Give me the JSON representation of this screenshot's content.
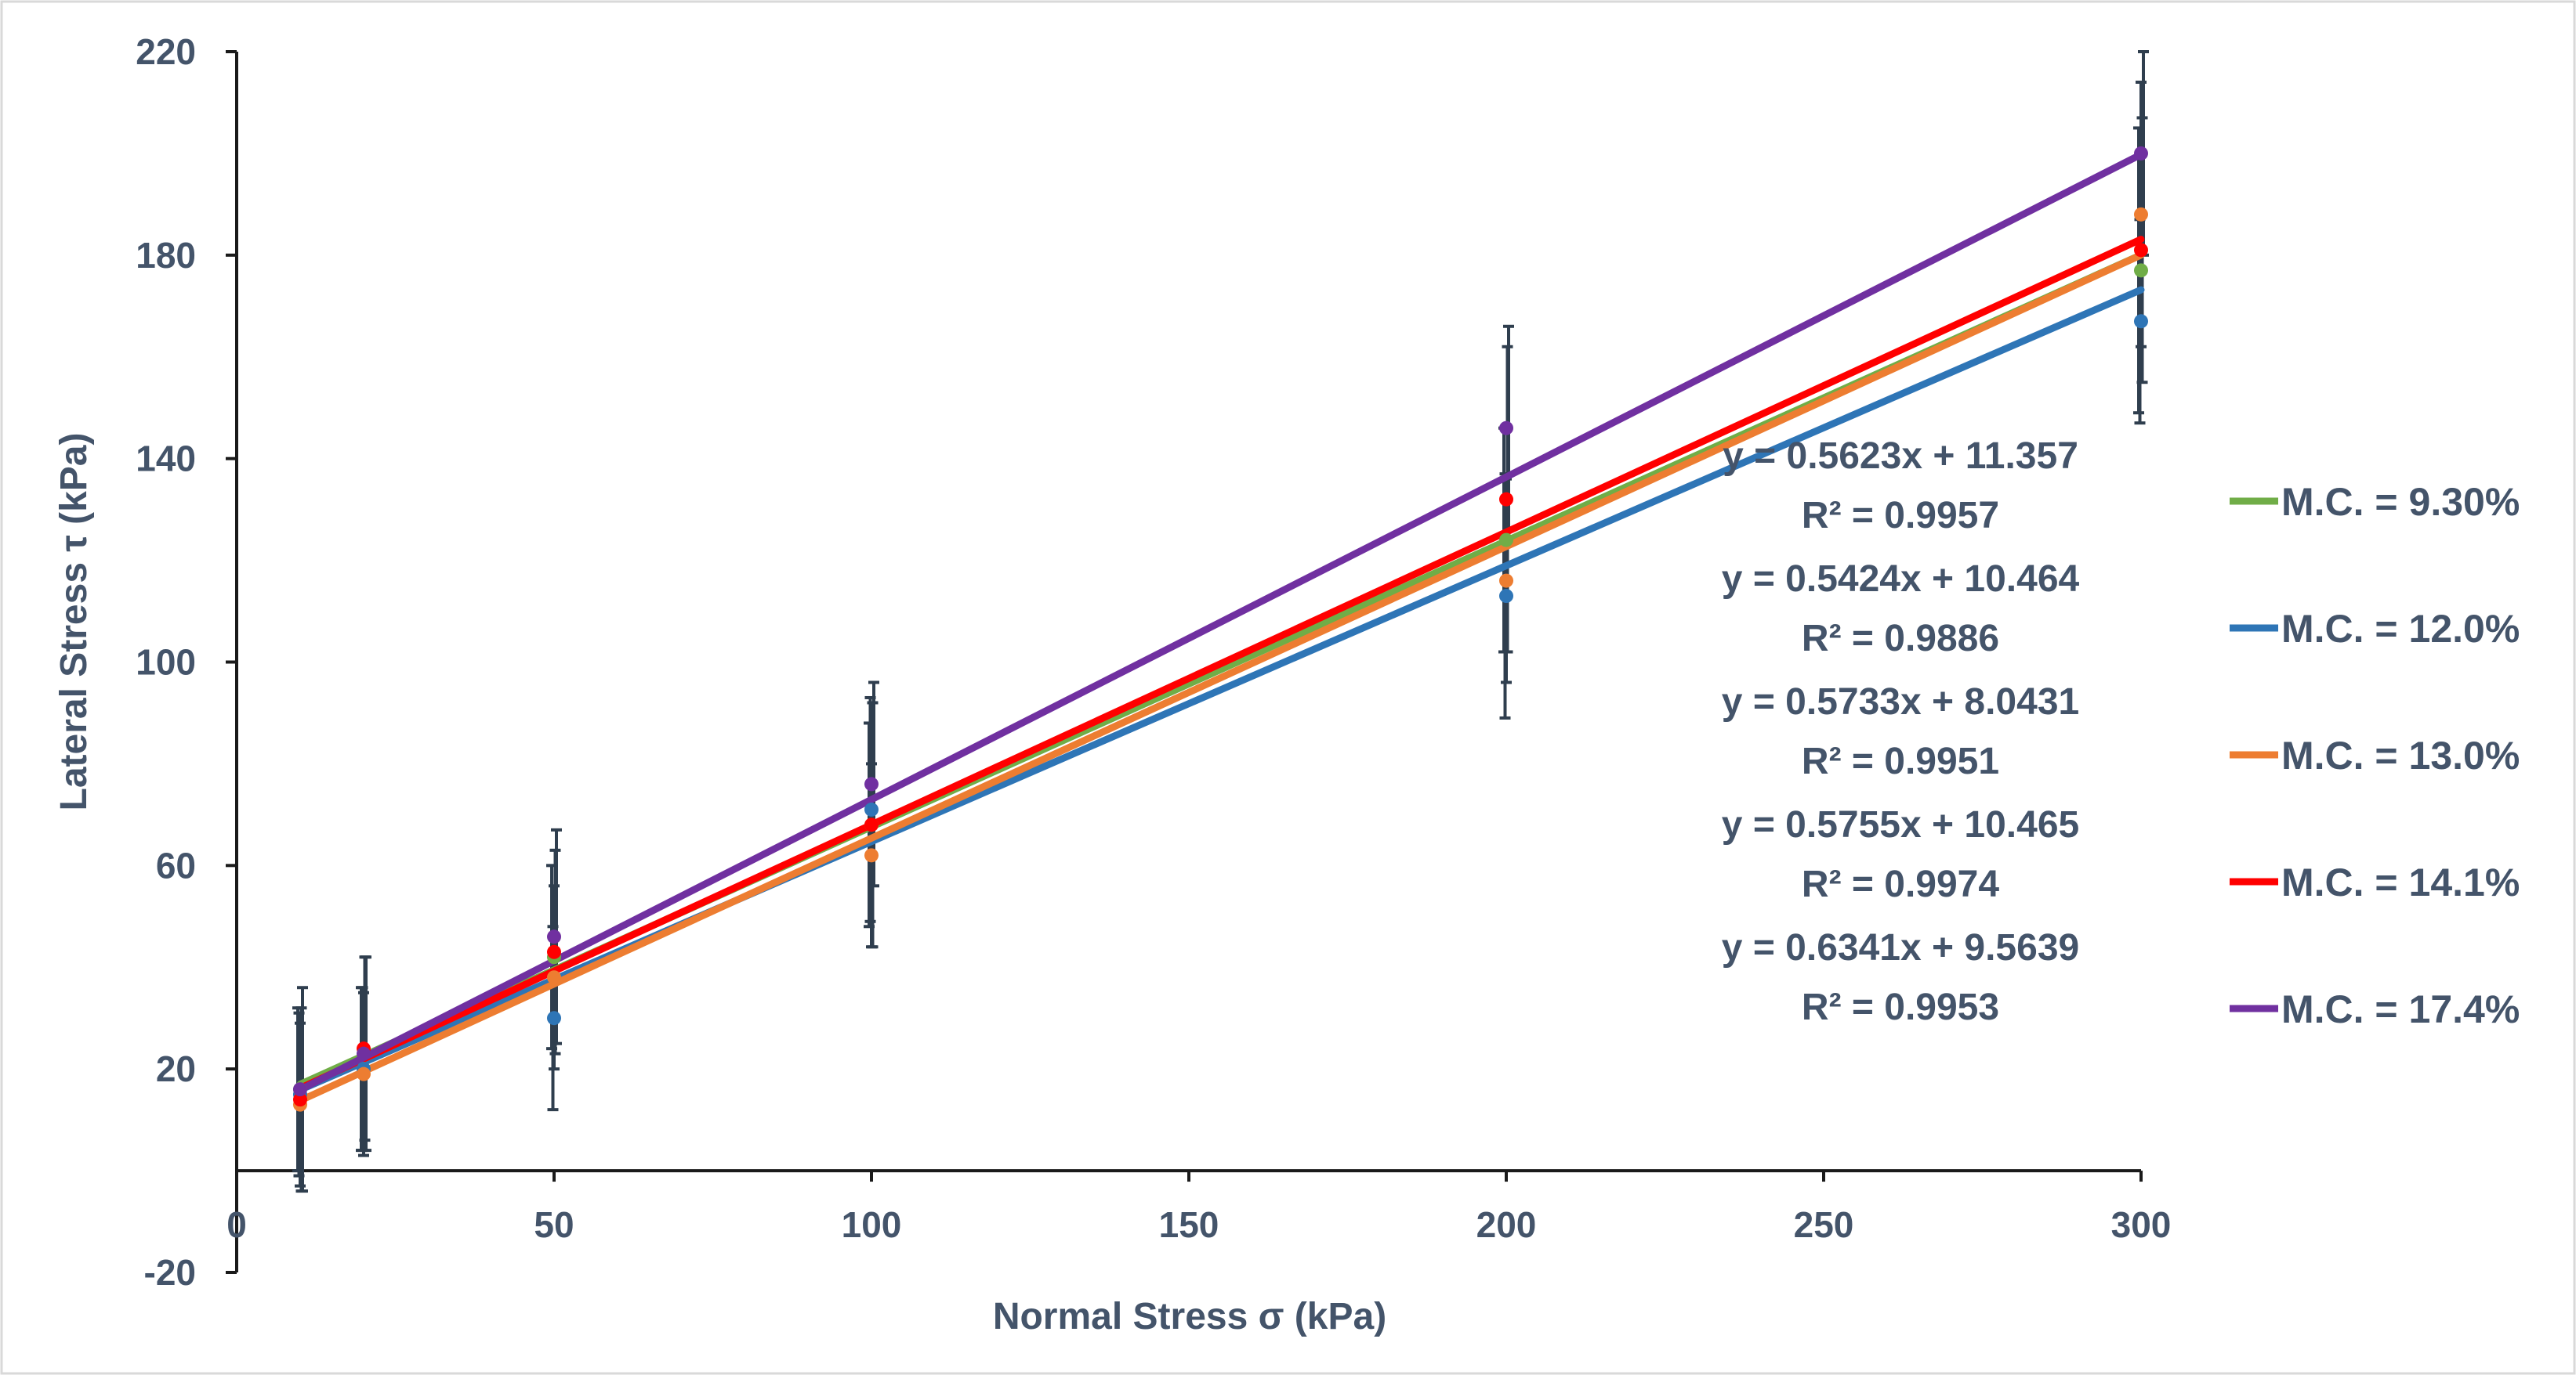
{
  "chart_data": {
    "type": "scatter",
    "xlabel": "Normal Stress σ (kPa)",
    "ylabel": "Lateral Stress τ (kPa)",
    "xlim": [
      0,
      300
    ],
    "ylim": [
      -20,
      220
    ],
    "x_ticks": [
      0,
      50,
      100,
      150,
      200,
      250,
      300
    ],
    "y_ticks": [
      -20,
      20,
      60,
      100,
      140,
      180,
      220
    ],
    "x": [
      10,
      20,
      50,
      100,
      200,
      300
    ],
    "series": [
      {
        "name": "M.C. = 9.30%",
        "color": "#70ad47",
        "values": [
          16,
          20,
          42,
          68,
          124,
          177
        ],
        "error": [
          16,
          16,
          18,
          20,
          22,
          28
        ],
        "trendline": {
          "slope": 0.5623,
          "intercept": 11.357
        },
        "equation": "y = 0.5623x + 11.357",
        "r2": "R² = 0.9957"
      },
      {
        "name": "M.C. = 12.0%",
        "color": "#2e75b6",
        "values": [
          15,
          20,
          30,
          71,
          113,
          167
        ],
        "error": [
          16,
          16,
          18,
          22,
          24,
          20
        ],
        "trendline": {
          "slope": 0.5424,
          "intercept": 10.464
        },
        "equation": "y = 0.5424x + 10.464",
        "r2": "R² = 0.9886"
      },
      {
        "name": "M.C. = 13.0%",
        "color": "#ed7d31",
        "values": [
          13,
          19,
          38,
          62,
          116,
          188
        ],
        "error": [
          16,
          16,
          18,
          18,
          20,
          26
        ],
        "trendline": {
          "slope": 0.5733,
          "intercept": 8.0431
        },
        "equation": "y = 0.5733x + 8.0431",
        "r2": "R² = 0.9951"
      },
      {
        "name": "M.C. = 14.1%",
        "color": "#ff0000",
        "values": [
          14,
          24,
          43,
          68,
          132,
          181
        ],
        "error": [
          18,
          18,
          20,
          24,
          30,
          26
        ],
        "trendline": {
          "slope": 0.5755,
          "intercept": 10.465
        },
        "equation": "y = 0.5755x + 10.465",
        "r2": "R² = 0.9974"
      },
      {
        "name": "M.C. = 17.4%",
        "color": "#7030a0",
        "values": [
          16,
          23,
          46,
          76,
          146,
          200
        ],
        "error": [
          20,
          19,
          21,
          20,
          20,
          20
        ],
        "trendline": {
          "slope": 0.6341,
          "intercept": 9.5639
        },
        "equation": "y = 0.6341x + 9.5639",
        "r2": "R² = 0.9953"
      }
    ],
    "legend_position": "right",
    "grid": false
  }
}
